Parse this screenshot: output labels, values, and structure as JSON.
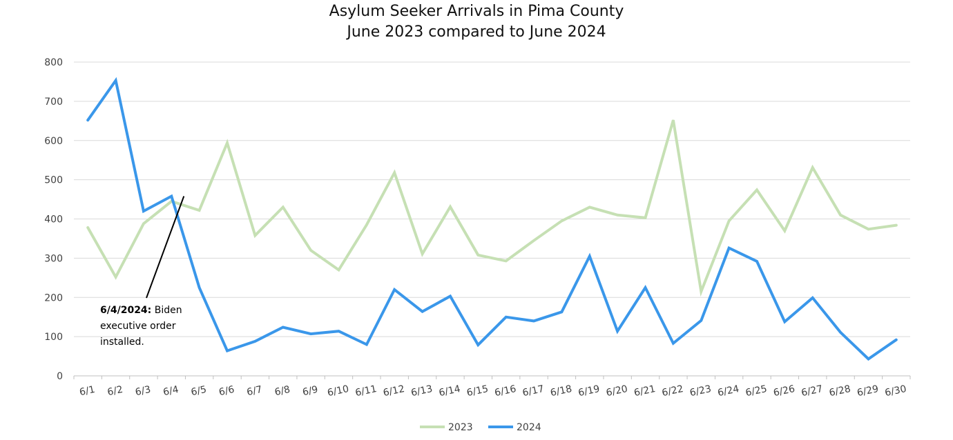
{
  "chart_data": {
    "type": "line",
    "title": [
      "Asylum Seeker Arrivals in Pima County",
      "June 2023 compared to June 2024"
    ],
    "xlabel": "",
    "ylabel": "",
    "ylim": [
      0,
      800
    ],
    "yticks": [
      "0",
      "100",
      "200",
      "300",
      "400",
      "500",
      "600",
      "700",
      "800"
    ],
    "categories": [
      "6/1",
      "6/2",
      "6/3",
      "6/4",
      "6/5",
      "6/6",
      "6/7",
      "6/8",
      "6/9",
      "6/10",
      "6/11",
      "6/12",
      "6/13",
      "6/14",
      "6/15",
      "6/16",
      "6/17",
      "6/18",
      "6/19",
      "6/20",
      "6/21",
      "6/22",
      "6/23",
      "6/24",
      "6/25",
      "6/26",
      "6/27",
      "6/28",
      "6/29",
      "6/30"
    ],
    "grid": true,
    "legend_position": "bottom",
    "series": [
      {
        "name": "2023",
        "color": "#c6e0b4",
        "values": [
          378,
          252,
          388,
          445,
          422,
          594,
          358,
          430,
          320,
          270,
          385,
          518,
          311,
          431,
          308,
          293,
          345,
          395,
          430,
          410,
          403,
          652,
          215,
          395,
          474,
          370,
          531,
          410,
          374,
          384
        ]
      },
      {
        "name": "2024",
        "color": "#3a97ea",
        "values": [
          652,
          753,
          420,
          458,
          225,
          64,
          88,
          124,
          107,
          114,
          80,
          220,
          164,
          203,
          79,
          150,
          140,
          163,
          305,
          114,
          225,
          83,
          141,
          326,
          292,
          138,
          199,
          111,
          43,
          92
        ]
      }
    ],
    "annotation": {
      "bold": "6/4/2024:",
      "rest_line1": " Biden",
      "line2": "executive order",
      "line3": "installed.",
      "target_category": "6/4"
    }
  }
}
